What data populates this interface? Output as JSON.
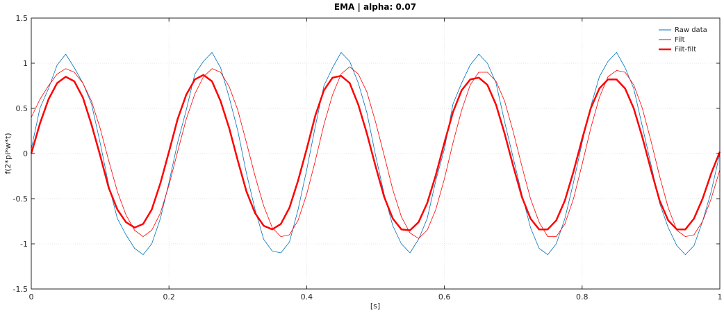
{
  "chart_data": {
    "type": "line",
    "title": "EMA | alpha: 0.07",
    "xlabel": "[s]",
    "ylabel": "f(2*pi*w*t)",
    "xlim": [
      0,
      1
    ],
    "ylim": [
      -1.5,
      1.5
    ],
    "xticks": [
      0,
      0.2,
      0.4,
      0.6,
      0.8,
      1
    ],
    "xtick_labels": [
      "0",
      "0.2",
      "0.4",
      "0.6",
      "0.8",
      "1"
    ],
    "yticks": [
      -1.5,
      -1,
      -0.5,
      0,
      0.5,
      1,
      1.5
    ],
    "ytick_labels": [
      "-1.5",
      "-1",
      "-0.5",
      "0",
      "0.5",
      "1",
      "1.5"
    ],
    "grid": true,
    "legend_position": "top-right",
    "series": [
      {
        "name": "Raw data",
        "color": "#0072bd",
        "x": [
          0,
          0.0125,
          0.025,
          0.0375,
          0.05,
          0.0625,
          0.075,
          0.0875,
          0.1,
          0.1125,
          0.125,
          0.1375,
          0.15,
          0.1625,
          0.175,
          0.1875,
          0.2,
          0.2125,
          0.225,
          0.2375,
          0.25,
          0.2625,
          0.275,
          0.2875,
          0.3,
          0.3125,
          0.325,
          0.3375,
          0.35,
          0.3625,
          0.375,
          0.3875,
          0.4,
          0.4125,
          0.425,
          0.4375,
          0.45,
          0.4625,
          0.475,
          0.4875,
          0.5,
          0.5125,
          0.525,
          0.5375,
          0.55,
          0.5625,
          0.575,
          0.5875,
          0.6,
          0.6125,
          0.625,
          0.6375,
          0.65,
          0.6625,
          0.675,
          0.6875,
          0.7,
          0.7125,
          0.725,
          0.7375,
          0.75,
          0.7625,
          0.775,
          0.7875,
          0.8,
          0.8125,
          0.825,
          0.8375,
          0.85,
          0.8625,
          0.875,
          0.8875,
          0.9,
          0.9125,
          0.925,
          0.9375,
          0.95,
          0.9625,
          0.975,
          0.9875,
          1
        ],
        "y": [
          0.05,
          0.5,
          0.72,
          0.98,
          1.1,
          0.95,
          0.78,
          0.55,
          0.12,
          -0.35,
          -0.72,
          -0.9,
          -1.05,
          -1.12,
          -1.0,
          -0.72,
          -0.32,
          0.12,
          0.48,
          0.88,
          1.02,
          1.12,
          0.95,
          0.62,
          0.25,
          -0.22,
          -0.62,
          -0.95,
          -1.08,
          -1.1,
          -0.98,
          -0.62,
          -0.18,
          0.3,
          0.75,
          0.95,
          1.12,
          1.02,
          0.78,
          0.45,
          -0.02,
          -0.45,
          -0.8,
          -1.0,
          -1.1,
          -0.95,
          -0.72,
          -0.3,
          0.05,
          0.55,
          0.78,
          0.98,
          1.1,
          1.0,
          0.78,
          0.35,
          -0.05,
          -0.45,
          -0.82,
          -1.05,
          -1.12,
          -1.0,
          -0.72,
          -0.32,
          0.12,
          0.52,
          0.85,
          1.02,
          1.12,
          0.95,
          0.72,
          0.3,
          -0.12,
          -0.55,
          -0.82,
          -1.02,
          -1.12,
          -1.02,
          -0.75,
          -0.42,
          0.0
        ]
      },
      {
        "name": "Filt",
        "color": "#ff0000",
        "x": [
          0,
          0.0125,
          0.025,
          0.0375,
          0.05,
          0.0625,
          0.075,
          0.0875,
          0.1,
          0.1125,
          0.125,
          0.1375,
          0.15,
          0.1625,
          0.175,
          0.1875,
          0.2,
          0.2125,
          0.225,
          0.2375,
          0.25,
          0.2625,
          0.275,
          0.2875,
          0.3,
          0.3125,
          0.325,
          0.3375,
          0.35,
          0.3625,
          0.375,
          0.3875,
          0.4,
          0.4125,
          0.425,
          0.4375,
          0.45,
          0.4625,
          0.475,
          0.4875,
          0.5,
          0.5125,
          0.525,
          0.5375,
          0.55,
          0.5625,
          0.575,
          0.5875,
          0.6,
          0.6125,
          0.625,
          0.6375,
          0.65,
          0.6625,
          0.675,
          0.6875,
          0.7,
          0.7125,
          0.725,
          0.7375,
          0.75,
          0.7625,
          0.775,
          0.7875,
          0.8,
          0.8125,
          0.825,
          0.8375,
          0.85,
          0.8625,
          0.875,
          0.8875,
          0.9,
          0.9125,
          0.925,
          0.9375,
          0.95,
          0.9625,
          0.975,
          0.9875,
          1
        ],
        "y": [
          0.4,
          0.6,
          0.75,
          0.88,
          0.94,
          0.9,
          0.78,
          0.58,
          0.28,
          -0.08,
          -0.42,
          -0.68,
          -0.85,
          -0.92,
          -0.85,
          -0.66,
          -0.35,
          0.02,
          0.38,
          0.66,
          0.85,
          0.94,
          0.9,
          0.74,
          0.48,
          0.12,
          -0.25,
          -0.58,
          -0.82,
          -0.92,
          -0.9,
          -0.74,
          -0.45,
          -0.08,
          0.32,
          0.65,
          0.88,
          0.96,
          0.88,
          0.68,
          0.35,
          -0.02,
          -0.4,
          -0.7,
          -0.88,
          -0.94,
          -0.85,
          -0.62,
          -0.28,
          0.12,
          0.48,
          0.76,
          0.9,
          0.9,
          0.8,
          0.58,
          0.24,
          -0.14,
          -0.5,
          -0.76,
          -0.92,
          -0.92,
          -0.78,
          -0.5,
          -0.12,
          0.28,
          0.62,
          0.85,
          0.92,
          0.9,
          0.76,
          0.5,
          0.14,
          -0.25,
          -0.6,
          -0.85,
          -0.92,
          -0.9,
          -0.75,
          -0.5,
          -0.18
        ]
      },
      {
        "name": "Filt-filt",
        "color": "#ff0000",
        "x": [
          0,
          0.0125,
          0.025,
          0.0375,
          0.05,
          0.0625,
          0.075,
          0.0875,
          0.1,
          0.1125,
          0.125,
          0.1375,
          0.15,
          0.1625,
          0.175,
          0.1875,
          0.2,
          0.2125,
          0.225,
          0.2375,
          0.25,
          0.2625,
          0.275,
          0.2875,
          0.3,
          0.3125,
          0.325,
          0.3375,
          0.35,
          0.3625,
          0.375,
          0.3875,
          0.4,
          0.4125,
          0.425,
          0.4375,
          0.45,
          0.4625,
          0.475,
          0.4875,
          0.5,
          0.5125,
          0.525,
          0.5375,
          0.55,
          0.5625,
          0.575,
          0.5875,
          0.6,
          0.6125,
          0.625,
          0.6375,
          0.65,
          0.6625,
          0.675,
          0.6875,
          0.7,
          0.7125,
          0.725,
          0.7375,
          0.75,
          0.7625,
          0.775,
          0.7875,
          0.8,
          0.8125,
          0.825,
          0.8375,
          0.85,
          0.8625,
          0.875,
          0.8875,
          0.9,
          0.9125,
          0.925,
          0.9375,
          0.95,
          0.9625,
          0.975,
          0.9875,
          1
        ],
        "y": [
          0.0,
          0.33,
          0.6,
          0.78,
          0.85,
          0.8,
          0.62,
          0.32,
          -0.02,
          -0.38,
          -0.62,
          -0.76,
          -0.82,
          -0.78,
          -0.62,
          -0.33,
          0.02,
          0.38,
          0.65,
          0.82,
          0.87,
          0.8,
          0.58,
          0.28,
          -0.08,
          -0.42,
          -0.66,
          -0.8,
          -0.84,
          -0.78,
          -0.6,
          -0.3,
          0.05,
          0.42,
          0.7,
          0.84,
          0.86,
          0.78,
          0.54,
          0.22,
          -0.14,
          -0.48,
          -0.72,
          -0.84,
          -0.85,
          -0.76,
          -0.55,
          -0.24,
          0.12,
          0.46,
          0.7,
          0.82,
          0.84,
          0.76,
          0.54,
          0.22,
          -0.14,
          -0.48,
          -0.72,
          -0.84,
          -0.84,
          -0.74,
          -0.52,
          -0.2,
          0.16,
          0.5,
          0.72,
          0.82,
          0.82,
          0.72,
          0.5,
          0.18,
          -0.18,
          -0.52,
          -0.74,
          -0.84,
          -0.84,
          -0.72,
          -0.5,
          -0.22,
          0.02
        ]
      }
    ]
  }
}
